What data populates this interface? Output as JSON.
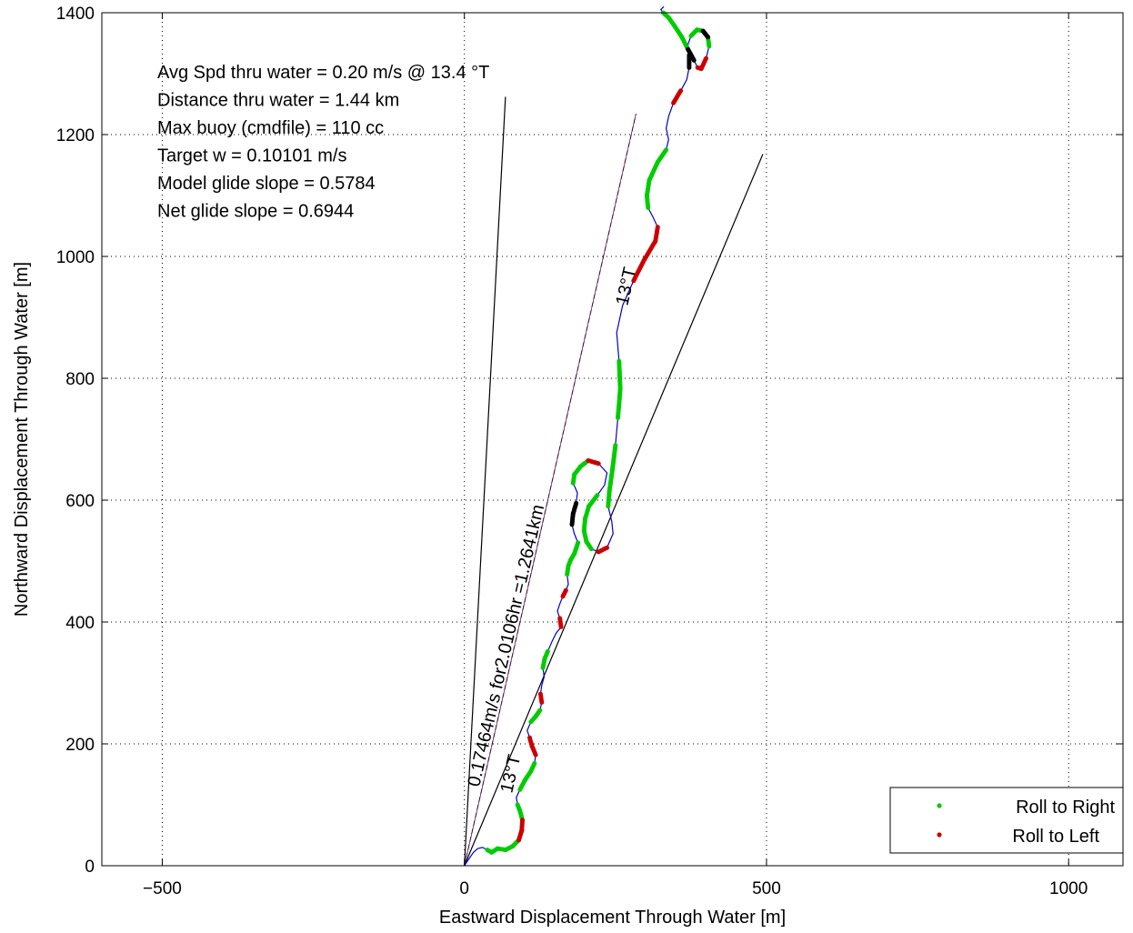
{
  "chart_data": {
    "type": "line",
    "title": "",
    "xlabel": "Eastward Displacement Through Water [m]",
    "ylabel": "Northward Displacement Through Water [m]",
    "xlim": [
      -600,
      1090
    ],
    "ylim": [
      0,
      1400
    ],
    "xticks": [
      -500,
      0,
      500,
      1000
    ],
    "yticks": [
      0,
      200,
      400,
      600,
      800,
      1000,
      1200,
      1400
    ],
    "grid": true,
    "legend_position": "bottom-right",
    "info_text": [
      "Avg Spd thru water =  0.20 m/s @  13.4    °T",
      "Distance thru water =  1.44 km",
      "Max buoy (cmdfile) = 110 cc",
      "Target w = 0.10101 m/s",
      "Model glide slope = 0.5784",
      "Net glide slope = 0.6944"
    ],
    "annotations": {
      "vector_label": "0.17464m/s for2.0106hr =1.2641km",
      "heading_label_top": "13°T",
      "heading_label_bottom": "13°T"
    },
    "reference_lines": [
      {
        "from": [
          0,
          0
        ],
        "to": [
          68,
          1262
        ],
        "color": "#000000"
      },
      {
        "from": [
          0,
          0
        ],
        "to": [
          494,
          1168
        ],
        "color": "#000000"
      },
      {
        "from": [
          0,
          0
        ],
        "to": [
          284,
          1234
        ],
        "color": "#cc33cc",
        "dashed": true
      }
    ],
    "track": {
      "name": "track",
      "color": "#0000cc",
      "x": [
        0,
        8,
        15,
        22,
        30,
        38,
        45,
        55,
        68,
        80,
        90,
        95,
        96,
        92,
        88,
        86,
        92,
        100,
        110,
        116,
        118,
        112,
        108,
        104,
        110,
        118,
        125,
        128,
        126,
        128,
        132,
        130,
        133,
        138,
        145,
        152,
        160,
        158,
        154,
        158,
        163,
        168,
        172,
        170,
        172,
        176,
        182,
        188,
        182,
        178,
        180,
        185,
        187,
        180,
        182,
        192,
        205,
        222,
        236,
        232,
        220,
        206,
        200,
        198,
        202,
        210,
        222,
        236,
        246,
        244,
        238,
        240,
        245,
        250,
        254,
        258,
        256,
        252,
        262,
        280,
        298,
        316,
        320,
        312,
        304,
        302,
        306,
        320,
        334,
        338,
        334,
        338,
        346,
        358,
        368,
        372,
        372,
        370,
        375,
        385,
        395,
        403,
        405,
        400,
        392,
        386,
        380,
        370,
        360,
        348,
        338,
        329,
        325,
        330
      ],
      "y": [
        0,
        12,
        22,
        28,
        30,
        26,
        22,
        28,
        26,
        32,
        42,
        58,
        75,
        90,
        100,
        112,
        125,
        140,
        155,
        168,
        182,
        196,
        210,
        222,
        236,
        245,
        255,
        268,
        282,
        296,
        310,
        325,
        340,
        352,
        368,
        382,
        392,
        406,
        418,
        430,
        442,
        452,
        462,
        478,
        492,
        502,
        512,
        530,
        545,
        560,
        578,
        595,
        612,
        628,
        642,
        655,
        665,
        660,
        645,
        625,
        608,
        590,
        570,
        550,
        532,
        520,
        515,
        522,
        545,
        565,
        590,
        615,
        650,
        690,
        735,
        782,
        828,
        875,
        920,
        960,
        995,
        1025,
        1048,
        1065,
        1080,
        1100,
        1125,
        1155,
        1175,
        1192,
        1210,
        1230,
        1252,
        1272,
        1290,
        1310,
        1330,
        1348,
        1362,
        1372,
        1370,
        1360,
        1345,
        1325,
        1308,
        1310,
        1322,
        1340,
        1360,
        1378,
        1392,
        1400,
        1405,
        1410
      ]
    },
    "series": [
      {
        "name": "Roll to Right",
        "color": "#00cc00"
      },
      {
        "name": "Roll to Left",
        "color": "#cc0000"
      }
    ],
    "roll_markers": [
      {
        "type": "right",
        "from": 5,
        "to": 11
      },
      {
        "type": "right",
        "from": 12,
        "to": 14
      },
      {
        "type": "right",
        "from": 16,
        "to": 19
      },
      {
        "type": "right",
        "from": 24,
        "to": 26
      },
      {
        "type": "right",
        "from": 31,
        "to": 33
      },
      {
        "type": "right",
        "from": 43,
        "to": 47
      },
      {
        "type": "right",
        "from": 53,
        "to": 56
      },
      {
        "type": "right",
        "from": 60,
        "to": 65
      },
      {
        "type": "right",
        "from": 70,
        "to": 73
      },
      {
        "type": "right",
        "from": 74,
        "to": 76
      },
      {
        "type": "right",
        "from": 84,
        "to": 88
      },
      {
        "type": "right",
        "from": 98,
        "to": 102
      },
      {
        "type": "right",
        "from": 107,
        "to": 111
      },
      {
        "type": "left",
        "from": 10,
        "to": 12
      },
      {
        "type": "left",
        "from": 20,
        "to": 22
      },
      {
        "type": "left",
        "from": 27,
        "to": 28
      },
      {
        "type": "left",
        "from": 36,
        "to": 37
      },
      {
        "type": "left",
        "from": 40,
        "to": 41
      },
      {
        "type": "left",
        "from": 56,
        "to": 57
      },
      {
        "type": "left",
        "from": 66,
        "to": 67
      },
      {
        "type": "left",
        "from": 79,
        "to": 82
      },
      {
        "type": "left",
        "from": 92,
        "to": 93
      },
      {
        "type": "left",
        "from": 103,
        "to": 105
      },
      {
        "type": "other",
        "from": 49,
        "to": 51
      },
      {
        "type": "other",
        "from": 95,
        "to": 96
      },
      {
        "type": "other",
        "from": 100,
        "to": 101
      },
      {
        "type": "other",
        "from": 106,
        "to": 107
      }
    ]
  }
}
